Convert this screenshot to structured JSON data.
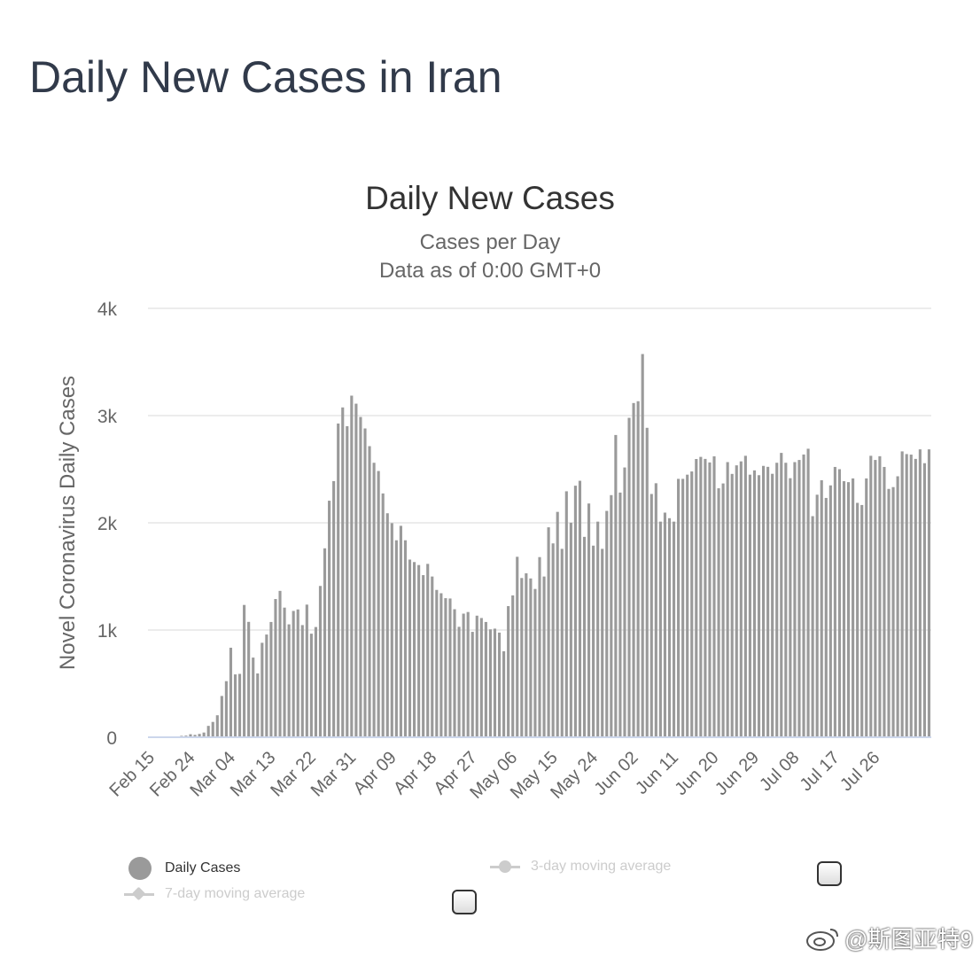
{
  "page": {
    "title": "Daily New Cases in Iran"
  },
  "chart_data": {
    "type": "bar",
    "title": "Daily New Cases",
    "subtitle_lines": [
      "Cases per Day",
      "Data as of 0:00 GMT+0"
    ],
    "ylabel": "Novel Coronavirus Daily Cases",
    "xlabel": "",
    "ylim": [
      0,
      4000
    ],
    "yticks": [
      0,
      1000,
      2000,
      3000,
      4000
    ],
    "ytick_labels": [
      "0",
      "1k",
      "2k",
      "3k",
      "4k"
    ],
    "grid": true,
    "bar_color": "#9a9a9a",
    "x_start_date": "2020-02-15",
    "x_tick_labels": [
      "Feb 15",
      "Feb 24",
      "Mar 04",
      "Mar 13",
      "Mar 22",
      "Mar 31",
      "Apr 09",
      "Apr 18",
      "Apr 27",
      "May 06",
      "May 15",
      "May 24",
      "Jun 02",
      "Jun 11",
      "Jun 20",
      "Jun 29",
      "Jul 08",
      "Jul 17",
      "Jul 26"
    ],
    "series": [
      {
        "name": "Daily Cases",
        "values": [
          0,
          0,
          0,
          0,
          2,
          3,
          5,
          13,
          15,
          28,
          22,
          31,
          44,
          106,
          143,
          205,
          385,
          523,
          835,
          586,
          591,
          1234,
          1076,
          743,
          595,
          881,
          958,
          1075,
          1289,
          1365,
          1209,
          1053,
          1178,
          1192,
          1046,
          1237,
          966,
          1028,
          1411,
          1762,
          2206,
          2389,
          2926,
          3076,
          2901,
          3186,
          3111,
          2987,
          2880,
          2715,
          2560,
          2483,
          2274,
          2089,
          1997,
          1837,
          1972,
          1837,
          1657,
          1634,
          1606,
          1512,
          1617,
          1499,
          1374,
          1343,
          1297,
          1294,
          1194,
          1030,
          1153,
          1168,
          983,
          1134,
          1112,
          1075,
          1006,
          1013,
          976,
          802,
          1223,
          1323,
          1683,
          1485,
          1529,
          1481,
          1383,
          1680,
          1499,
          1958,
          1808,
          2102,
          1757,
          2294,
          2001,
          2346,
          2392,
          1869,
          2180,
          1787,
          2011,
          1757,
          2111,
          2258,
          2819,
          2282,
          2516,
          2979,
          3117,
          3134,
          3574,
          2886,
          2269,
          2369,
          2011,
          2095,
          2043,
          2011,
          2410,
          2410,
          2449,
          2479,
          2595,
          2615,
          2596,
          2563,
          2620,
          2322,
          2367,
          2566,
          2456,
          2536,
          2573,
          2625,
          2449,
          2489,
          2444,
          2531,
          2522,
          2457,
          2560,
          2652,
          2560,
          2416,
          2566,
          2586,
          2637,
          2691,
          2062,
          2262,
          2397,
          2232,
          2349,
          2521,
          2500,
          2388,
          2379,
          2414,
          2186,
          2166,
          2414,
          2625,
          2586,
          2621,
          2521,
          2316,
          2333,
          2434,
          2666,
          2641,
          2636,
          2596,
          2685,
          2556,
          2685
        ]
      }
    ]
  },
  "legend": {
    "items": [
      {
        "label": "Daily Cases",
        "color": "#9a9a9a",
        "active": true
      },
      {
        "label": "3-day moving average",
        "color": "#cccccc",
        "active": false
      },
      {
        "label": "7-day moving average",
        "color": "#cccccc",
        "active": false
      }
    ]
  },
  "watermark": {
    "text": "@斯图亚特9"
  }
}
